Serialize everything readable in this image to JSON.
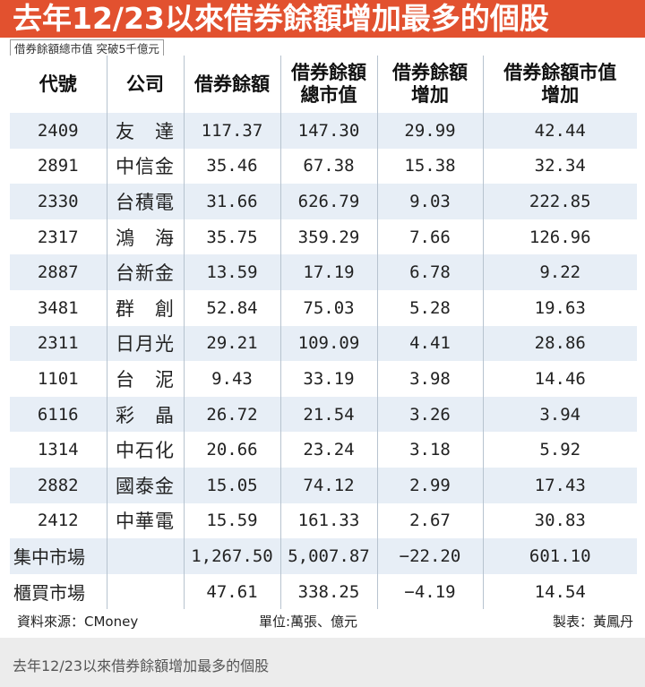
{
  "title": "去年12/23以來借券餘額增加最多的個股",
  "subtitle": "借券餘額總市值 突破5千億元",
  "table": {
    "headers": [
      "代號",
      "公司",
      "借券餘額",
      "借券餘額\n總市值",
      "借券餘額\n增加",
      "借券餘額市值\n增加"
    ],
    "rows": [
      [
        "2409",
        "友　達",
        "117.37",
        "147.30",
        "29.99",
        "42.44"
      ],
      [
        "2891",
        "中信金",
        "35.46",
        "67.38",
        "15.38",
        "32.34"
      ],
      [
        "2330",
        "台積電",
        "31.66",
        "626.79",
        "9.03",
        "222.85"
      ],
      [
        "2317",
        "鴻　海",
        "35.75",
        "359.29",
        "7.66",
        "126.96"
      ],
      [
        "2887",
        "台新金",
        "13.59",
        "17.19",
        "6.78",
        "9.22"
      ],
      [
        "3481",
        "群　創",
        "52.84",
        "75.03",
        "5.28",
        "19.63"
      ],
      [
        "2311",
        "日月光",
        "29.21",
        "109.09",
        "4.41",
        "28.86"
      ],
      [
        "1101",
        "台　泥",
        "9.43",
        "33.19",
        "3.98",
        "14.46"
      ],
      [
        "6116",
        "彩　晶",
        "26.72",
        "21.54",
        "3.26",
        "3.94"
      ],
      [
        "1314",
        "中石化",
        "20.66",
        "23.24",
        "3.18",
        "5.92"
      ],
      [
        "2882",
        "國泰金",
        "15.05",
        "74.12",
        "2.99",
        "17.43"
      ],
      [
        "2412",
        "中華電",
        "15.59",
        "161.33",
        "2.67",
        "30.83"
      ]
    ],
    "summary_rows": [
      [
        "集中市場",
        "",
        "1,267.50",
        "5,007.87",
        "−22.20",
        "601.10"
      ],
      [
        "櫃買市場",
        "",
        "47.61",
        "338.25",
        "−4.19",
        "14.54"
      ]
    ]
  },
  "footer": {
    "source": "資料來源：CMoney",
    "unit": "單位:萬張、億元",
    "maker": "製表：黃鳳丹"
  },
  "caption": "去年12/23以來借券餘額增加最多的個股",
  "colors": {
    "title_bar": "#e2512f",
    "row_shade": "#e7eef6",
    "caption_bg": "#ececec"
  }
}
